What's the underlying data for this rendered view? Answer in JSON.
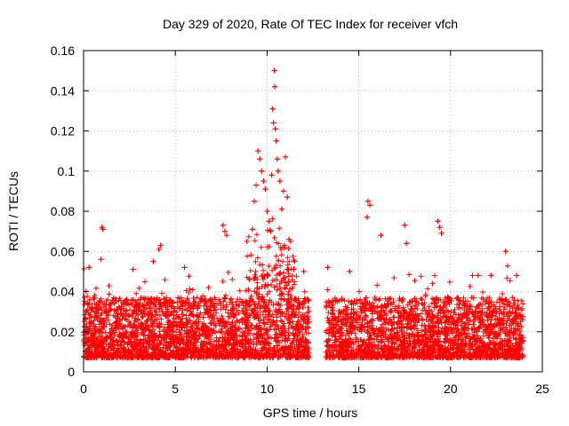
{
  "chart_data": {
    "type": "scatter",
    "title": "Day 329 of 2020, Rate Of TEC Index for receiver vfch",
    "xlabel": "GPS time / hours",
    "ylabel": "ROTI / TECUs",
    "xlim": [
      0,
      25
    ],
    "ylim": [
      0,
      0.16
    ],
    "x_ticks": [
      0,
      5,
      10,
      15,
      20,
      25
    ],
    "x_tick_labels": [
      "0",
      "5",
      "10",
      "15",
      "20",
      "25"
    ],
    "y_ticks": [
      0,
      0.02,
      0.04,
      0.06,
      0.08,
      0.1,
      0.12,
      0.14,
      0.16
    ],
    "y_tick_labels": [
      "0",
      "0.02",
      "0.04",
      "0.06",
      "0.08",
      "0.1",
      "0.12",
      "0.14",
      "0.16"
    ],
    "grid": true,
    "marker": "+",
    "color": "#ff0000",
    "data_gap_hours": [
      12.3,
      13.2
    ],
    "series": [
      {
        "name": "ROTI",
        "points": [
          [
            0.3,
            0.052
          ],
          [
            1.0,
            0.072
          ],
          [
            1.05,
            0.071
          ],
          [
            0.95,
            0.056
          ],
          [
            0.6,
            0.038
          ],
          [
            2.7,
            0.051
          ],
          [
            3.8,
            0.055
          ],
          [
            4.2,
            0.063
          ],
          [
            4.1,
            0.061
          ],
          [
            5.5,
            0.052
          ],
          [
            7.6,
            0.073
          ],
          [
            7.7,
            0.07
          ],
          [
            7.8,
            0.068
          ],
          [
            6.8,
            0.042
          ],
          [
            8.9,
            0.065
          ],
          [
            9.2,
            0.071
          ],
          [
            9.3,
            0.085
          ],
          [
            9.4,
            0.093
          ],
          [
            9.5,
            0.11
          ],
          [
            9.6,
            0.106
          ],
          [
            9.7,
            0.1
          ],
          [
            9.8,
            0.095
          ],
          [
            9.9,
            0.091
          ],
          [
            10.0,
            0.08
          ],
          [
            10.1,
            0.075
          ],
          [
            10.2,
            0.07
          ],
          [
            10.25,
            0.098
          ],
          [
            10.3,
            0.131
          ],
          [
            10.35,
            0.124
          ],
          [
            10.4,
            0.15
          ],
          [
            10.42,
            0.142
          ],
          [
            10.45,
            0.121
          ],
          [
            10.5,
            0.115
          ],
          [
            10.55,
            0.106
          ],
          [
            10.6,
            0.1
          ],
          [
            10.7,
            0.095
          ],
          [
            10.8,
            0.081
          ],
          [
            10.9,
            0.09
          ],
          [
            11.0,
            0.107
          ],
          [
            11.1,
            0.087
          ],
          [
            11.2,
            0.066
          ],
          [
            11.5,
            0.055
          ],
          [
            12.0,
            0.05
          ],
          [
            13.3,
            0.052
          ],
          [
            14.5,
            0.05
          ],
          [
            15.5,
            0.085
          ],
          [
            15.6,
            0.083
          ],
          [
            15.45,
            0.077
          ],
          [
            16.2,
            0.068
          ],
          [
            17.5,
            0.073
          ],
          [
            17.6,
            0.064
          ],
          [
            19.3,
            0.075
          ],
          [
            19.4,
            0.072
          ],
          [
            19.5,
            0.069
          ],
          [
            21.5,
            0.048
          ],
          [
            22.2,
            0.048
          ],
          [
            23.0,
            0.06
          ],
          [
            23.6,
            0.048
          ]
        ]
      }
    ]
  }
}
